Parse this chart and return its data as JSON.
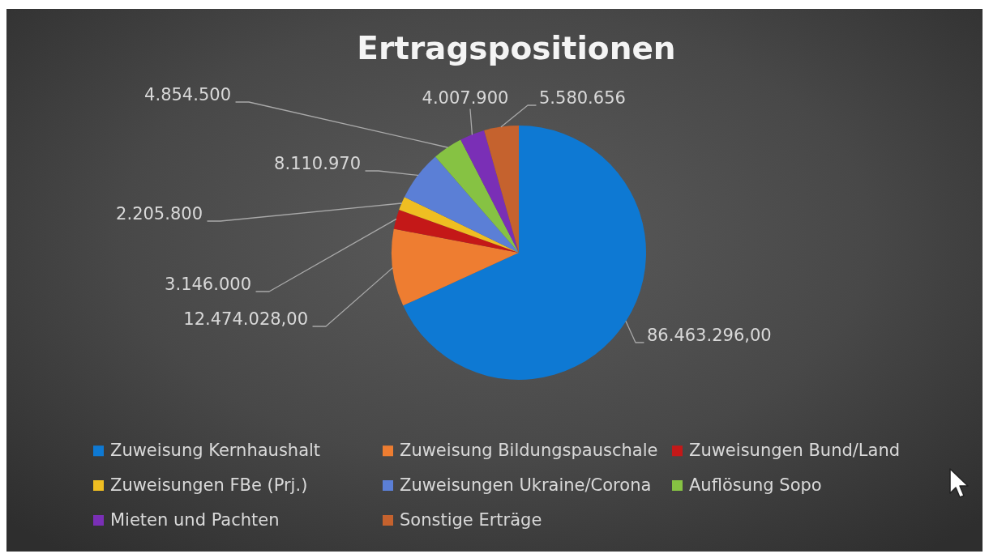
{
  "chart_data": {
    "type": "pie",
    "title": "Ertragspositionen",
    "categories": [
      "Zuweisung Kernhaushalt",
      "Zuweisung Bildungspauschale",
      "Zuweisungen Bund/Land",
      "Zuweisungen FBe (Prj.)",
      "Zuweisungen Ukraine/Corona",
      "Auflösung Sopo",
      "Mieten und Pachten",
      "Sonstige Erträge"
    ],
    "values": [
      86463296,
      12474028,
      3146000,
      2205800,
      8110970,
      4854500,
      4007900,
      5580656
    ],
    "value_labels": [
      "86.463.296,00",
      "12.474.028,00",
      "3.146.000",
      "2.205.800",
      "8.110.970",
      "4.854.500",
      "4.007.900",
      "5.580.656"
    ],
    "colors": [
      "#0e79d3",
      "#ee7d31",
      "#c41818",
      "#efbe22",
      "#5b7fd6",
      "#86c243",
      "#7a2fb6",
      "#c5622e"
    ],
    "legend": "bottom"
  }
}
